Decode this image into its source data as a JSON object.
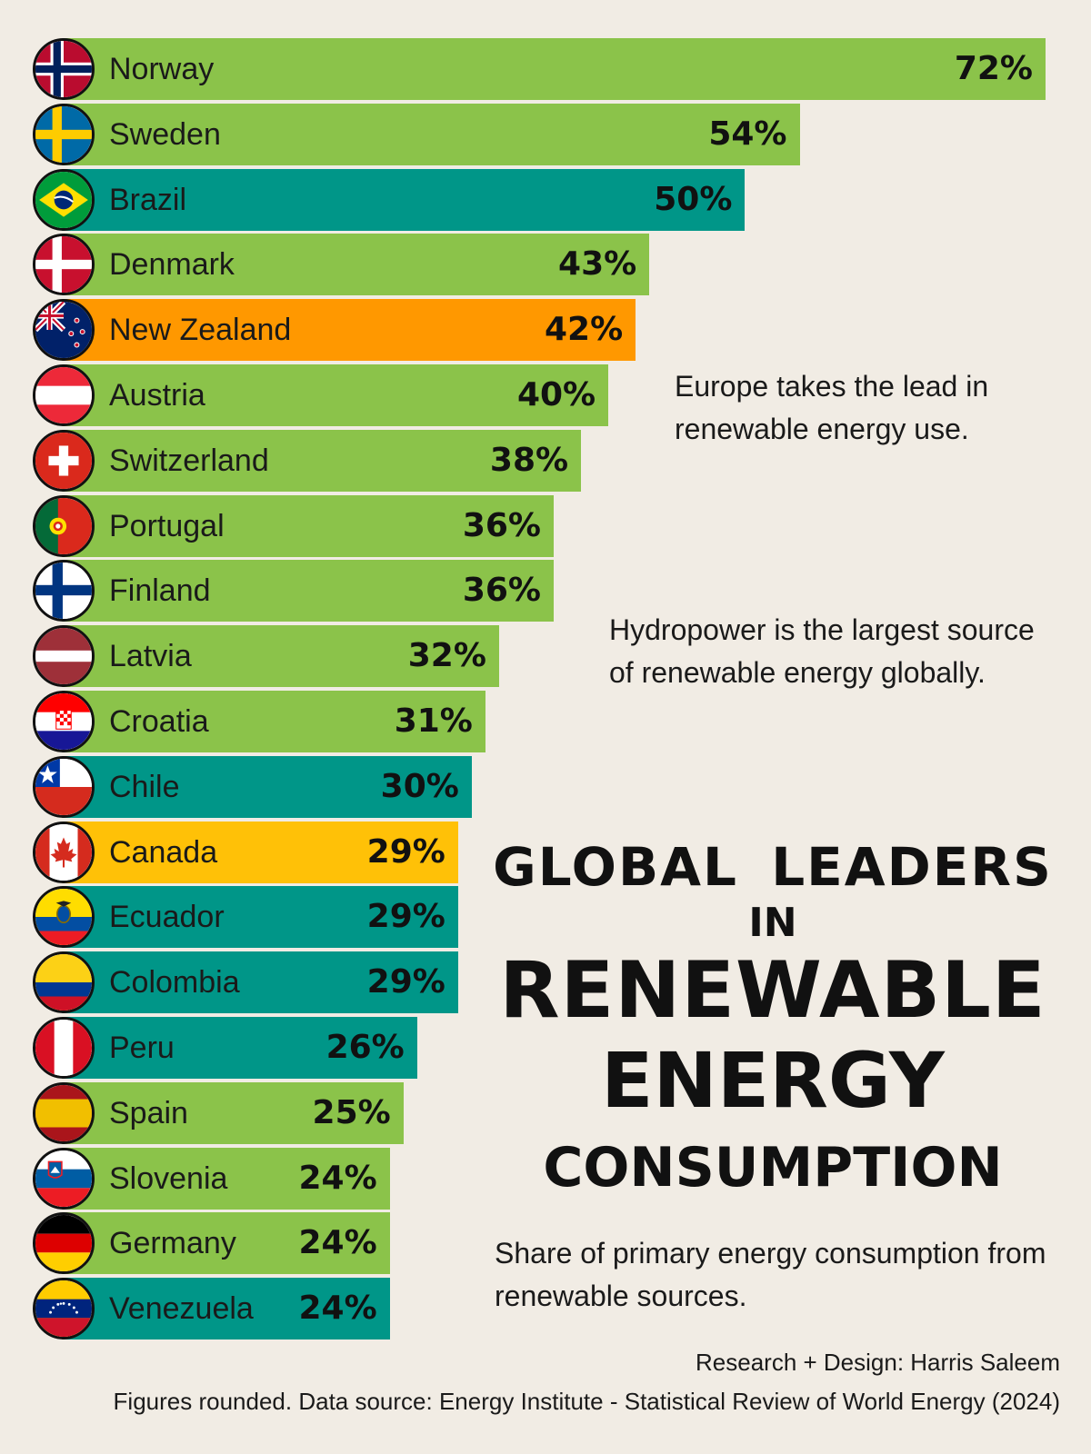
{
  "colors": {
    "background": "#f1ece4",
    "green": "#8bc34a",
    "teal": "#009688",
    "orange": "#ff9800",
    "amber": "#ffc107"
  },
  "annotations": {
    "note1": "Europe takes the lead in renewable energy use.",
    "note2": "Hydropower is the largest source of renewable energy globally."
  },
  "title": {
    "line1": "GLOBAL  LEADERS",
    "line2": "IN",
    "line3": "RENEWABLE",
    "line4": "ENERGY",
    "line5": "CONSUMPTION"
  },
  "subtitle": "Share of primary energy consumption from renewable sources.",
  "credit": "Research + Design: Harris Saleem",
  "source": "Figures rounded. Data source: Energy Institute - Statistical Review of World Energy (2024)",
  "chart_data": {
    "type": "bar",
    "orientation": "horizontal",
    "xlim": [
      0,
      72
    ],
    "grid": false,
    "legend": "none",
    "categories": [
      "Norway",
      "Sweden",
      "Brazil",
      "Denmark",
      "New Zealand",
      "Austria",
      "Switzerland",
      "Portugal",
      "Finland",
      "Latvia",
      "Croatia",
      "Chile",
      "Canada",
      "Ecuador",
      "Colombia",
      "Peru",
      "Spain",
      "Slovenia",
      "Germany",
      "Venezuela"
    ],
    "values": [
      72,
      54,
      50,
      43,
      42,
      40,
      38,
      36,
      36,
      32,
      31,
      30,
      29,
      29,
      29,
      26,
      25,
      24,
      24,
      24
    ],
    "value_labels": [
      "72%",
      "54%",
      "50%",
      "43%",
      "42%",
      "40%",
      "38%",
      "36%",
      "36%",
      "32%",
      "31%",
      "30%",
      "29%",
      "29%",
      "29%",
      "26%",
      "25%",
      "24%",
      "24%",
      "24%"
    ],
    "bar_colors": [
      "#8bc34a",
      "#8bc34a",
      "#009688",
      "#8bc34a",
      "#ff9800",
      "#8bc34a",
      "#8bc34a",
      "#8bc34a",
      "#8bc34a",
      "#8bc34a",
      "#8bc34a",
      "#009688",
      "#ffc107",
      "#009688",
      "#009688",
      "#009688",
      "#8bc34a",
      "#8bc34a",
      "#8bc34a",
      "#009688"
    ],
    "flag_icons": [
      "norway-flag-icon",
      "sweden-flag-icon",
      "brazil-flag-icon",
      "denmark-flag-icon",
      "new-zealand-flag-icon",
      "austria-flag-icon",
      "switzerland-flag-icon",
      "portugal-flag-icon",
      "finland-flag-icon",
      "latvia-flag-icon",
      "croatia-flag-icon",
      "chile-flag-icon",
      "canada-flag-icon",
      "ecuador-flag-icon",
      "colombia-flag-icon",
      "peru-flag-icon",
      "spain-flag-icon",
      "slovenia-flag-icon",
      "germany-flag-icon",
      "venezuela-flag-icon"
    ]
  }
}
